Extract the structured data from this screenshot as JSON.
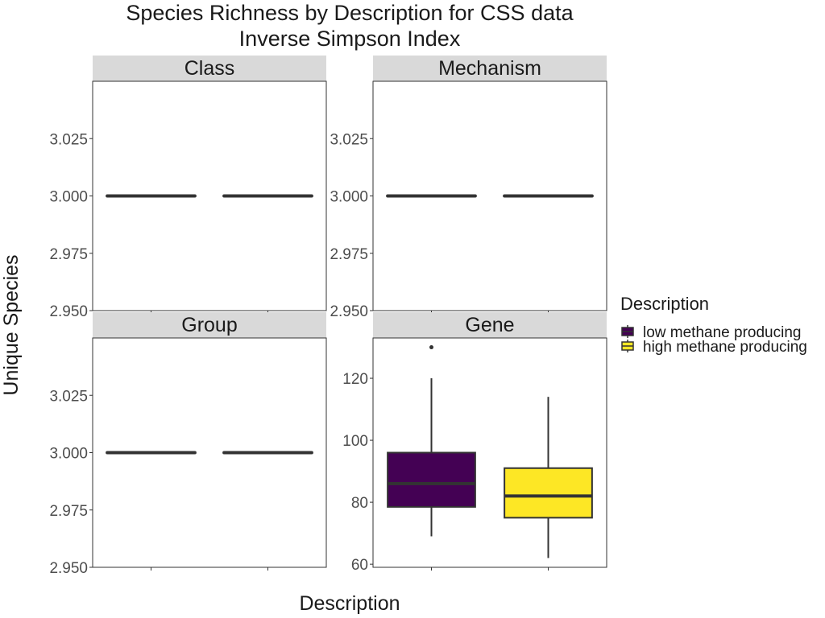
{
  "chart_data": {
    "type": "boxplot",
    "title": "Species Richness by Description for CSS data",
    "subtitle": "Inverse Simpson Index",
    "xlabel": "Description",
    "ylabel": "Unique Species",
    "legend": {
      "title": "Description",
      "position": "right",
      "entries": [
        {
          "label": "low methane producing",
          "color": "#440154"
        },
        {
          "label": "high methane producing",
          "color": "#FDE725"
        }
      ]
    },
    "grid": false,
    "x_tick_labels": "",
    "panels": [
      {
        "name": "Class",
        "ylim": [
          2.95,
          3.05
        ],
        "yticks": [
          "3.025",
          "3.000",
          "2.975",
          "2.950"
        ],
        "boxes": [
          {
            "group": "low methane producing",
            "min": 3,
            "q1": 3,
            "median": 3,
            "q3": 3,
            "max": 3,
            "outliers": []
          },
          {
            "group": "high methane producing",
            "min": 3,
            "q1": 3,
            "median": 3,
            "q3": 3,
            "max": 3,
            "outliers": []
          }
        ]
      },
      {
        "name": "Mechanism",
        "ylim": [
          2.95,
          3.05
        ],
        "yticks": [
          "3.025",
          "3.000",
          "2.975",
          "2.950"
        ],
        "boxes": [
          {
            "group": "low methane producing",
            "min": 3,
            "q1": 3,
            "median": 3,
            "q3": 3,
            "max": 3,
            "outliers": []
          },
          {
            "group": "high methane producing",
            "min": 3,
            "q1": 3,
            "median": 3,
            "q3": 3,
            "max": 3,
            "outliers": []
          }
        ]
      },
      {
        "name": "Group",
        "ylim": [
          2.95,
          3.05
        ],
        "yticks": [
          "3.025",
          "3.000",
          "2.975",
          "2.950"
        ],
        "boxes": [
          {
            "group": "low methane producing",
            "min": 3,
            "q1": 3,
            "median": 3,
            "q3": 3,
            "max": 3,
            "outliers": []
          },
          {
            "group": "high methane producing",
            "min": 3,
            "q1": 3,
            "median": 3,
            "q3": 3,
            "max": 3,
            "outliers": []
          }
        ]
      },
      {
        "name": "Gene",
        "ylim": [
          59,
          133
        ],
        "yticks": [
          "120",
          "100",
          "80",
          "60"
        ],
        "boxes": [
          {
            "group": "low methane producing",
            "min": 69,
            "q1": 78.5,
            "median": 86,
            "q3": 96,
            "max": 120,
            "outliers": [
              130
            ]
          },
          {
            "group": "high methane producing",
            "min": 62,
            "q1": 75,
            "median": 82,
            "q3": 91,
            "max": 114,
            "outliers": []
          }
        ]
      }
    ]
  }
}
